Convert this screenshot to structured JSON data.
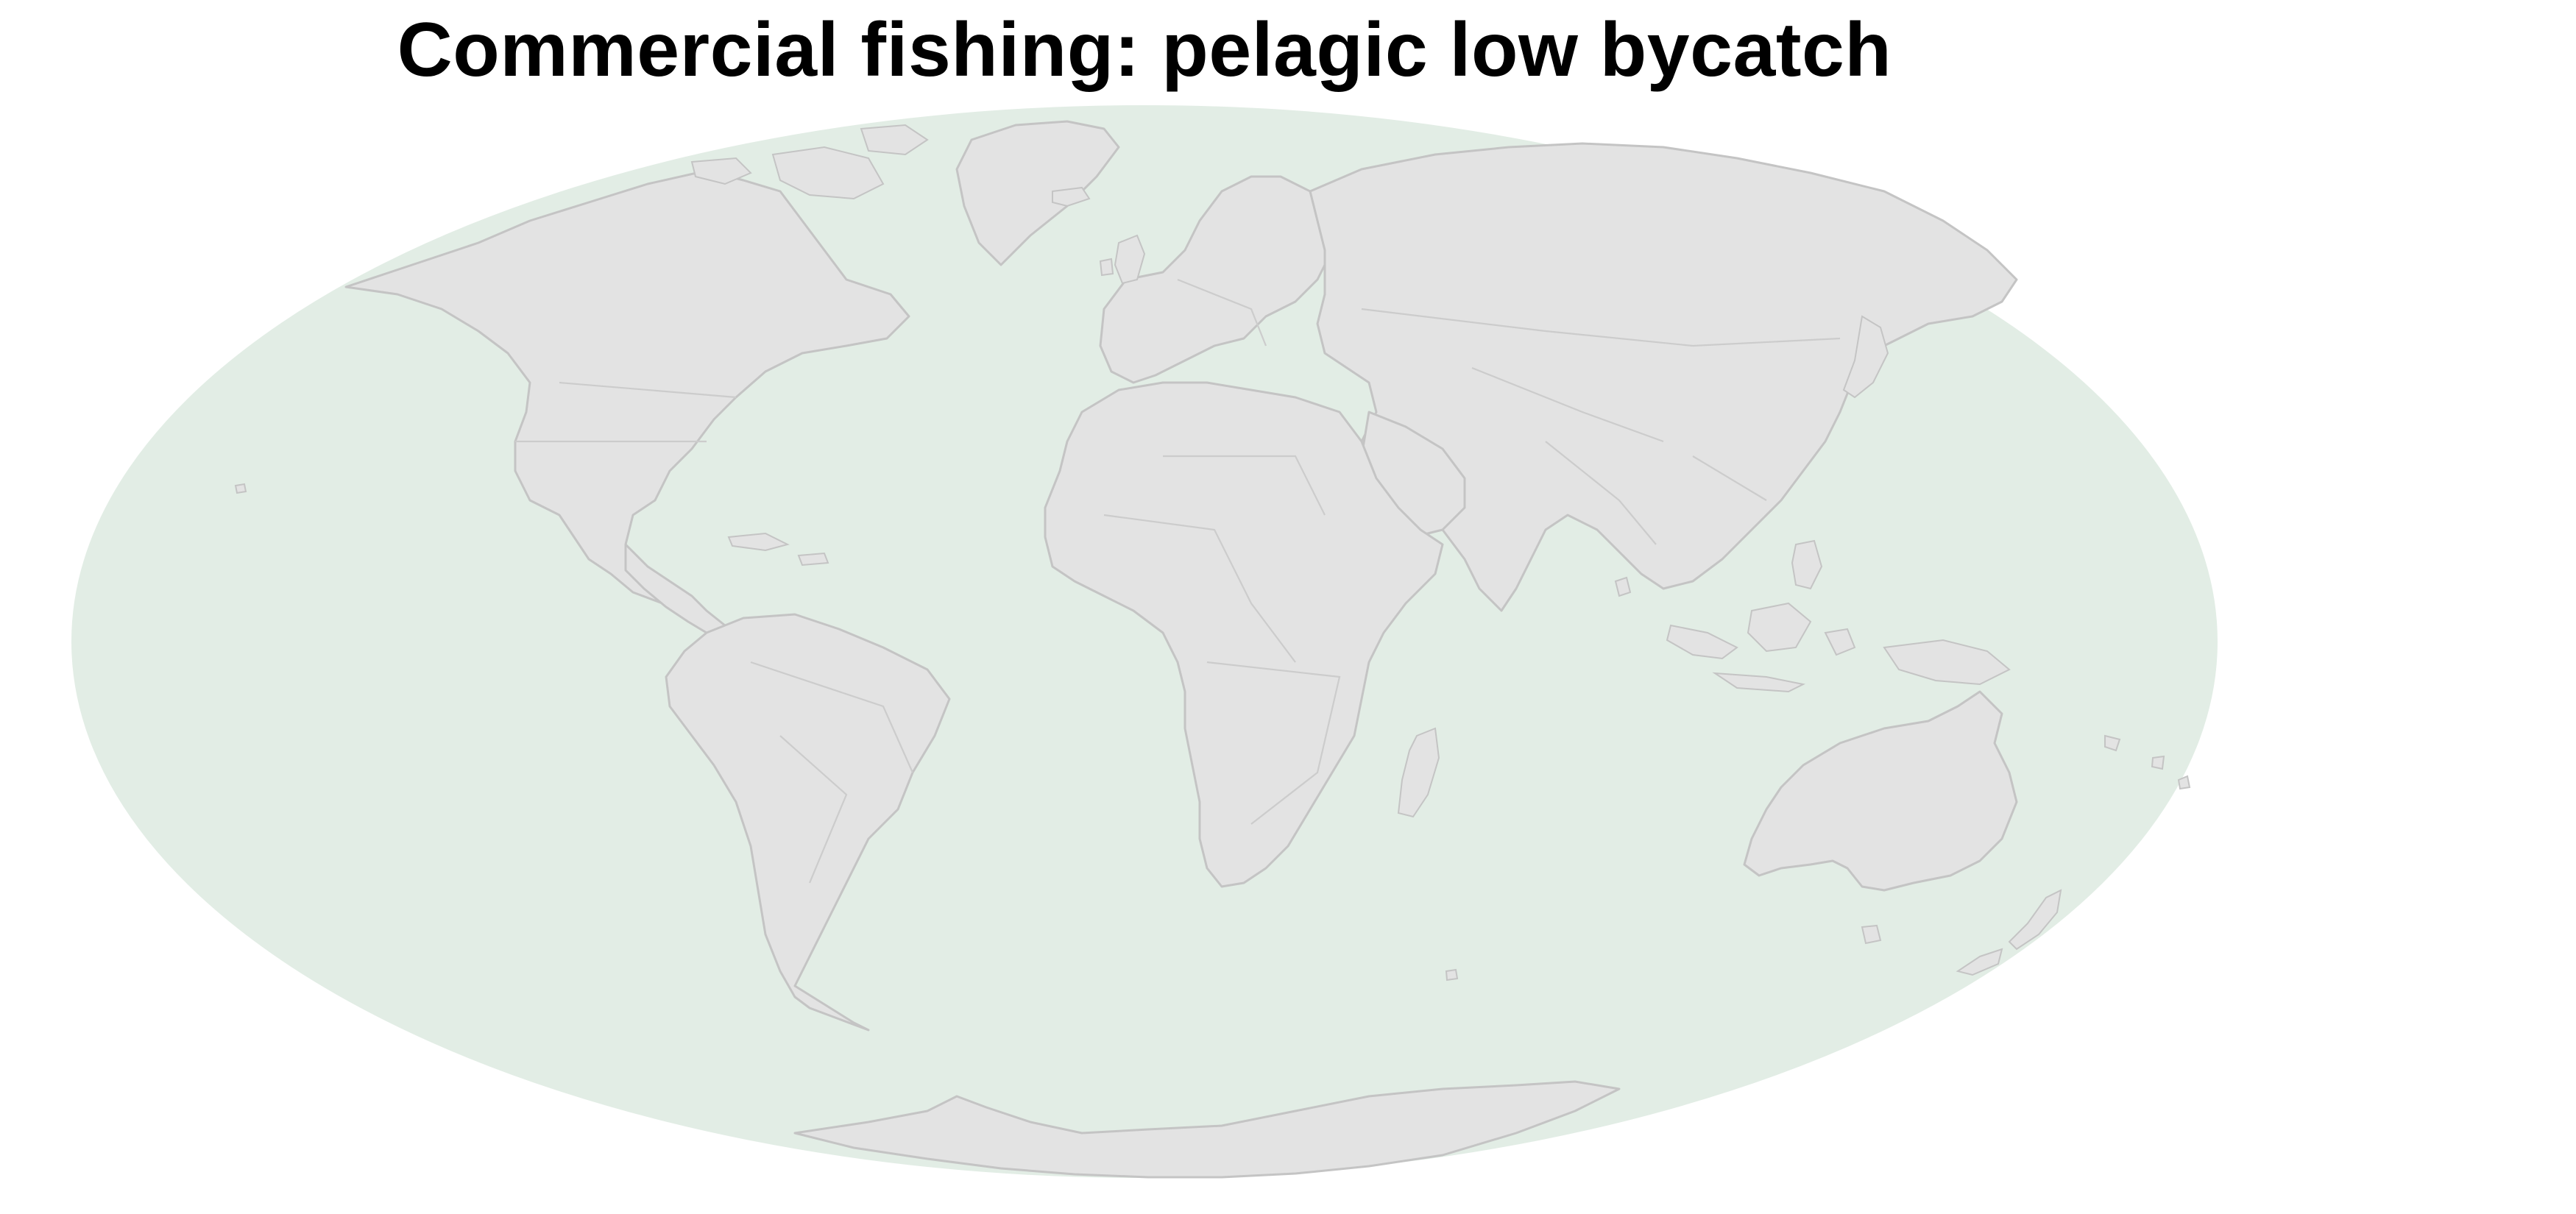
{
  "title": "Commercial fishing: pelagic low bycatch",
  "map": {
    "projection": "Mollweide",
    "ocean_color": "#e2ede5",
    "land_color": "#e3e3e3",
    "border_color": "#c4c4c4",
    "background_color": "#ffffff"
  }
}
